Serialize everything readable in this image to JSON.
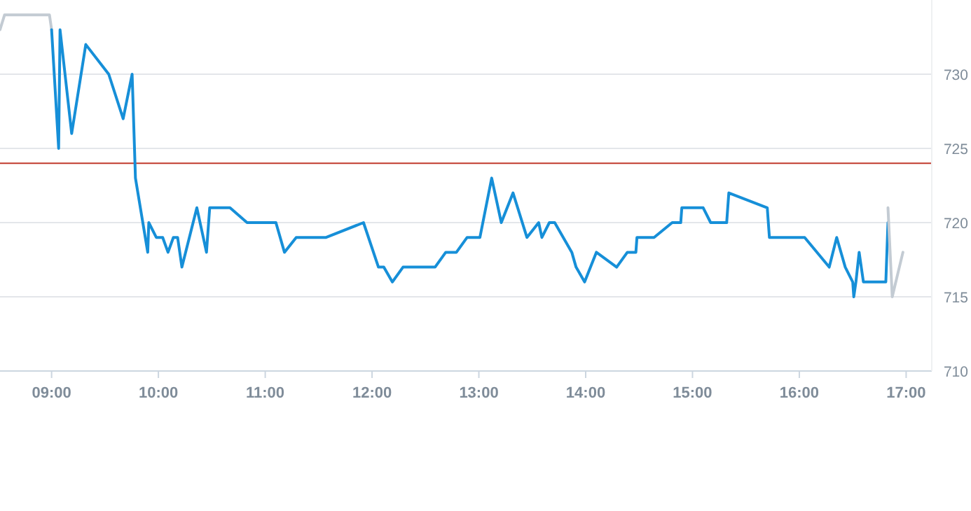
{
  "chart_data": {
    "type": "line",
    "xlim": [
      8.517,
      17.24
    ],
    "ylim": [
      710,
      735
    ],
    "xticks": [
      {
        "value": 9,
        "label": "09:00"
      },
      {
        "value": 10,
        "label": "10:00"
      },
      {
        "value": 11,
        "label": "11:00"
      },
      {
        "value": 12,
        "label": "12:00"
      },
      {
        "value": 13,
        "label": "13:00"
      },
      {
        "value": 14,
        "label": "14:00"
      },
      {
        "value": 15,
        "label": "15:00"
      },
      {
        "value": 16,
        "label": "16:00"
      },
      {
        "value": 17,
        "label": "17:00"
      }
    ],
    "yticks": [
      710,
      715,
      720,
      725,
      730
    ],
    "grid": "y",
    "marker": "none",
    "line_style": "solid",
    "ref_lines": [
      {
        "axis": "y",
        "value": 724,
        "color": "#c0392b"
      }
    ],
    "series": [
      {
        "color": "#c3cbd3",
        "x": [
          8.517,
          8.56,
          8.98,
          9.0
        ],
        "values": [
          733,
          734,
          734,
          733
        ]
      },
      {
        "color": "#168fd8",
        "x": [
          9.0,
          9.066,
          9.079,
          9.188,
          9.32,
          9.535,
          9.67,
          9.754,
          9.785,
          9.9,
          9.91,
          9.98,
          10.04,
          10.09,
          10.14,
          10.18,
          10.22,
          10.36,
          10.45,
          10.48,
          10.67,
          10.83,
          11.1,
          11.18,
          11.29,
          11.57,
          11.92,
          12.06,
          12.11,
          12.19,
          12.29,
          12.59,
          12.69,
          12.79,
          12.89,
          13.01,
          13.12,
          13.21,
          13.32,
          13.45,
          13.56,
          13.59,
          13.66,
          13.71,
          13.87,
          13.91,
          13.99,
          14.1,
          14.29,
          14.39,
          14.47,
          14.48,
          14.64,
          14.81,
          14.89,
          14.9,
          15.1,
          15.17,
          15.32,
          15.34,
          15.7,
          15.72,
          16.05,
          16.28,
          16.35,
          16.43,
          16.5,
          16.51,
          16.53,
          16.56,
          16.6,
          16.81,
          16.83
        ],
        "values": [
          733,
          725,
          733,
          726,
          732,
          730,
          727,
          730,
          723,
          718,
          720,
          719,
          719,
          718,
          719,
          719,
          717,
          721,
          718,
          721,
          721,
          720,
          720,
          718,
          719,
          719,
          720,
          717,
          717,
          716,
          717,
          717,
          718,
          718,
          719,
          719,
          723,
          720,
          722,
          719,
          720,
          719,
          720,
          720,
          718,
          717,
          716,
          718,
          717,
          718,
          718,
          719,
          719,
          720,
          720,
          721,
          721,
          720,
          720,
          722,
          721,
          719,
          719,
          717,
          719,
          717,
          716,
          715,
          716,
          718,
          716,
          716,
          720
        ]
      },
      {
        "color": "#c3cbd3",
        "x": [
          16.83,
          16.87,
          16.97
        ],
        "values": [
          721,
          715,
          718
        ]
      }
    ]
  }
}
